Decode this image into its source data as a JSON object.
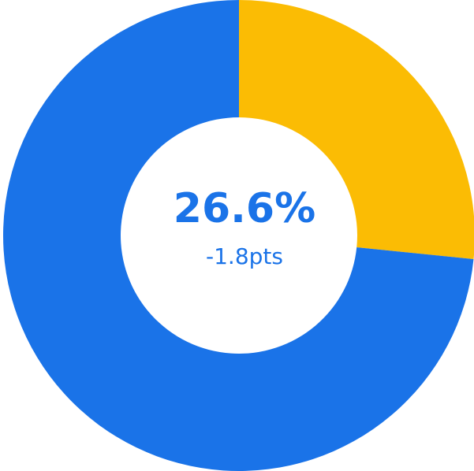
{
  "chart_data": {
    "type": "donut",
    "categories": [
      null,
      null
    ],
    "values": [
      26.6,
      73.4
    ],
    "value_labels": [
      "26.6%",
      null
    ],
    "colors": [
      "#fbbc04",
      "#1a73e8"
    ],
    "subtitle": "-1.8pts"
  }
}
